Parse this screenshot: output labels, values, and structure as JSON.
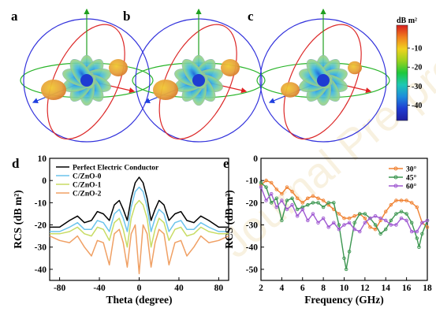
{
  "panels_3d": [
    {
      "label": "a"
    },
    {
      "label": "b"
    },
    {
      "label": "c"
    }
  ],
  "colorbar": {
    "title": "dB m²",
    "ticks": [
      -10,
      -20,
      -30,
      -40
    ],
    "range": [
      -48,
      2
    ],
    "colors": [
      "#d81e1e",
      "#f07f1e",
      "#f0d21e",
      "#9ad21e",
      "#1ec83c",
      "#1ec8b4",
      "#1e8cdc",
      "#1e3cd2",
      "#1e1ea0"
    ]
  },
  "watermark": "Journal Pre-proof",
  "chart_data": [
    {
      "type": "line",
      "panel_label": "d",
      "xlabel": "Theta (degree)",
      "ylabel": "RCS (dB m²)",
      "xlim": [
        -90,
        90
      ],
      "ylim": [
        -45,
        10
      ],
      "xticks": [
        -80,
        -40,
        0,
        40,
        80
      ],
      "yticks": [
        10,
        0,
        -10,
        -20,
        -30,
        -40
      ],
      "legend_position": "top-right",
      "series": [
        {
          "name": "Perfect Electric Conductor",
          "color": "#000000",
          "x": [
            -90,
            -80,
            -70,
            -62,
            -55,
            -48,
            -42,
            -36,
            -30,
            -25,
            -20,
            -16,
            -12,
            -8,
            -4,
            0,
            4,
            8,
            12,
            16,
            20,
            25,
            30,
            36,
            42,
            48,
            55,
            62,
            70,
            80,
            90
          ],
          "y": [
            -21,
            -21,
            -18,
            -16,
            -19,
            -18,
            -14,
            -15,
            -18,
            -11,
            -9,
            -13,
            -18,
            -8,
            -1,
            1.5,
            -1,
            -8,
            -18,
            -13,
            -9,
            -11,
            -18,
            -15,
            -14,
            -18,
            -19,
            -16,
            -18,
            -21,
            -21
          ]
        },
        {
          "name": "C/ZnO-0",
          "color": "#6cc4ec",
          "x": [
            -90,
            -80,
            -70,
            -62,
            -55,
            -48,
            -42,
            -36,
            -30,
            -25,
            -20,
            -16,
            -12,
            -8,
            -4,
            0,
            4,
            8,
            12,
            16,
            20,
            25,
            30,
            36,
            42,
            48,
            55,
            62,
            70,
            80,
            90
          ],
          "y": [
            -23,
            -23,
            -21,
            -19,
            -22,
            -22,
            -18,
            -19,
            -23,
            -15,
            -13,
            -17,
            -23,
            -12,
            -5,
            -3,
            -5,
            -12,
            -23,
            -17,
            -13,
            -15,
            -23,
            -19,
            -18,
            -22,
            -22,
            -19,
            -21,
            -23,
            -23
          ]
        },
        {
          "name": "C/ZnO-1",
          "color": "#c8dc64",
          "x": [
            -90,
            -80,
            -70,
            -62,
            -55,
            -48,
            -42,
            -36,
            -30,
            -25,
            -20,
            -16,
            -12,
            -8,
            -4,
            0,
            4,
            8,
            12,
            16,
            20,
            25,
            30,
            36,
            42,
            48,
            55,
            62,
            70,
            80,
            90
          ],
          "y": [
            -24,
            -24,
            -23,
            -21,
            -24,
            -25,
            -21,
            -22,
            -27,
            -19,
            -17,
            -22,
            -30,
            -17,
            -11,
            -9,
            -11,
            -17,
            -30,
            -22,
            -17,
            -19,
            -27,
            -22,
            -21,
            -25,
            -24,
            -21,
            -23,
            -24,
            -24
          ]
        },
        {
          "name": "C/ZnO-2",
          "color": "#f0a064",
          "x": [
            -90,
            -80,
            -70,
            -62,
            -55,
            -48,
            -42,
            -36,
            -30,
            -25,
            -20,
            -16,
            -12,
            -8,
            -4,
            0,
            4,
            8,
            12,
            16,
            20,
            25,
            30,
            36,
            42,
            48,
            55,
            62,
            70,
            80,
            90
          ],
          "y": [
            -25,
            -27,
            -28,
            -25,
            -30,
            -34,
            -27,
            -28,
            -38,
            -24,
            -22,
            -28,
            -39,
            -24,
            -20,
            -42,
            -20,
            -24,
            -39,
            -28,
            -22,
            -24,
            -38,
            -28,
            -27,
            -34,
            -30,
            -25,
            -28,
            -27,
            -25
          ]
        }
      ]
    },
    {
      "type": "line",
      "panel_label": "e",
      "xlabel": "Frequency (GHz)",
      "ylabel": "RCS (dB m²)",
      "xlim": [
        2,
        18
      ],
      "ylim": [
        -55,
        0
      ],
      "xticks": [
        2,
        4,
        6,
        8,
        10,
        12,
        14,
        16,
        18
      ],
      "yticks": [
        0,
        -10,
        -20,
        -30,
        -40,
        -50
      ],
      "legend_position": "top-right",
      "series": [
        {
          "name": "30°",
          "color": "#f08232",
          "x": [
            2,
            2.5,
            3,
            3.5,
            4,
            4.5,
            5,
            5.5,
            6,
            6.5,
            7,
            7.5,
            8,
            8.5,
            9,
            9.5,
            10,
            10.5,
            11,
            11.5,
            12,
            12.5,
            13,
            13.5,
            14,
            14.5,
            15,
            15.5,
            16,
            16.5,
            17,
            17.5,
            18
          ],
          "y": [
            -12,
            -10,
            -11,
            -14,
            -16,
            -13,
            -15,
            -18,
            -20,
            -18,
            -17,
            -18,
            -19,
            -21,
            -23,
            -25,
            -27,
            -27,
            -26,
            -25,
            -27,
            -31,
            -32,
            -28,
            -24,
            -21,
            -19,
            -19,
            -19,
            -20,
            -22,
            -29,
            -31
          ]
        },
        {
          "name": "45°",
          "color": "#3c9650",
          "x": [
            2,
            2.5,
            3,
            3.5,
            4,
            4.5,
            5,
            5.5,
            6,
            6.5,
            7,
            7.5,
            8,
            8.5,
            9,
            9.5,
            10,
            10.2,
            10.5,
            11,
            11.5,
            12,
            12.5,
            13,
            13.5,
            14,
            14.5,
            15,
            15.5,
            16,
            16.5,
            17,
            17.2,
            17.5,
            18
          ],
          "y": [
            -11,
            -13,
            -20,
            -18,
            -28,
            -19,
            -18,
            -23,
            -22,
            -21,
            -20,
            -20,
            -22,
            -20,
            -20,
            -30,
            -45,
            -50,
            -42,
            -29,
            -25,
            -25,
            -27,
            -30,
            -34,
            -32,
            -28,
            -25,
            -24,
            -25,
            -29,
            -36,
            -40,
            -34,
            -28
          ]
        },
        {
          "name": "60°",
          "color": "#a05ad2",
          "x": [
            2,
            2.5,
            3,
            3.5,
            4,
            4.5,
            5,
            5.5,
            6,
            6.5,
            7,
            7.5,
            8,
            8.5,
            9,
            9.5,
            10,
            10.5,
            11,
            11.5,
            12,
            12.5,
            13,
            13.5,
            14,
            14.5,
            15,
            15.5,
            16,
            16.5,
            17,
            17.5,
            18
          ],
          "y": [
            -13,
            -19,
            -16,
            -22,
            -19,
            -23,
            -21,
            -26,
            -23,
            -28,
            -25,
            -29,
            -27,
            -31,
            -29,
            -32,
            -30,
            -29,
            -32,
            -33,
            -29,
            -27,
            -26,
            -27,
            -28,
            -30,
            -30,
            -27,
            -28,
            -33,
            -33,
            -29,
            -28
          ]
        }
      ]
    }
  ]
}
